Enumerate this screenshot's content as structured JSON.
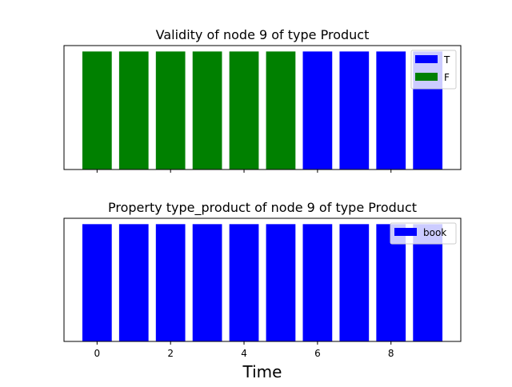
{
  "chart_data": [
    {
      "type": "bar",
      "title": "Validity of node 9 of type Product",
      "x": [
        0,
        1,
        2,
        3,
        4,
        5,
        6,
        7,
        8,
        9
      ],
      "values": [
        1,
        1,
        1,
        1,
        1,
        1,
        1,
        1,
        1,
        1
      ],
      "categories_per_bar": [
        "F",
        "F",
        "F",
        "F",
        "F",
        "F",
        "T",
        "T",
        "T",
        "T"
      ],
      "legend": [
        {
          "label": "T",
          "color": "#0000ff"
        },
        {
          "label": "F",
          "color": "#008000"
        }
      ],
      "legend_position": "top-right",
      "xlim": [
        -0.9,
        9.9
      ],
      "ylim": [
        0,
        1.05
      ],
      "xticks": [
        0,
        2,
        4,
        6,
        8
      ],
      "show_xtick_labels": false,
      "show_yticks": false,
      "grid": false
    },
    {
      "type": "bar",
      "title": "Property type_product of node 9 of type Product",
      "x": [
        0,
        1,
        2,
        3,
        4,
        5,
        6,
        7,
        8,
        9
      ],
      "values": [
        1,
        1,
        1,
        1,
        1,
        1,
        1,
        1,
        1,
        1
      ],
      "categories_per_bar": [
        "book",
        "book",
        "book",
        "book",
        "book",
        "book",
        "book",
        "book",
        "book",
        "book"
      ],
      "legend": [
        {
          "label": "book",
          "color": "#0000ff"
        }
      ],
      "legend_position": "top-right",
      "xlim": [
        -0.9,
        9.9
      ],
      "ylim": [
        0,
        1.05
      ],
      "xticks": [
        0,
        2,
        4,
        6,
        8
      ],
      "xtick_labels": [
        "0",
        "2",
        "4",
        "6",
        "8"
      ],
      "show_xtick_labels": true,
      "show_yticks": false,
      "grid": false
    }
  ],
  "xlabel": "Time"
}
